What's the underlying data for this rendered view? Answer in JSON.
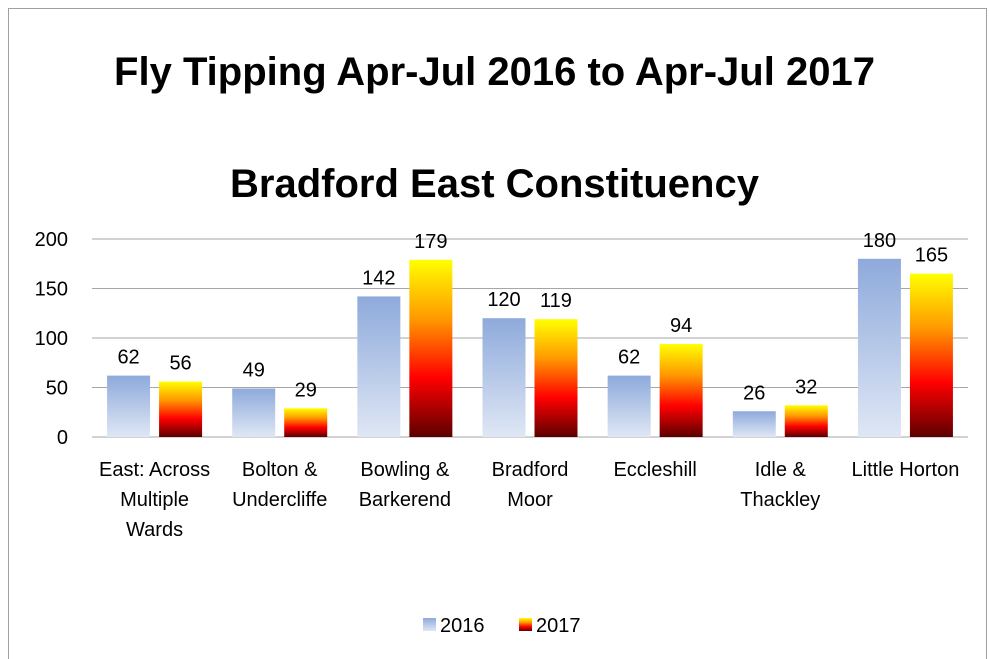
{
  "chart_data": {
    "type": "bar",
    "title": "Fly Tipping Apr-Jul 2016 to Apr-Jul 2017",
    "subtitle": "Bradford East Constituency",
    "categories": [
      "East: Across Multiple Wards",
      "Bolton & Undercliffe",
      "Bowling & Barkerend",
      "Bradford Moor",
      "Eccleshill",
      "Idle & Thackley",
      "Little Horton"
    ],
    "series": [
      {
        "name": "2016",
        "color": [
          "#8eaadb",
          "#dfe7f5"
        ],
        "values": [
          62,
          49,
          142,
          120,
          62,
          26,
          180
        ]
      },
      {
        "name": "2017",
        "color": [
          "#ffff00",
          "#ff9900",
          "#ff0000",
          "#5c0000"
        ],
        "values": [
          56,
          29,
          179,
          119,
          94,
          32,
          165
        ]
      }
    ],
    "ylim": [
      0,
      200
    ],
    "yticks": [
      0,
      50,
      100,
      150,
      200
    ],
    "grid": true,
    "legend": "bottom"
  }
}
